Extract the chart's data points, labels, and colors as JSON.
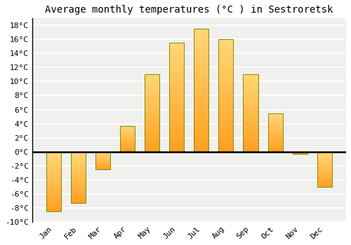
{
  "title": "Average monthly temperatures (°C ) in Sestroretsk",
  "months": [
    "Jan",
    "Feb",
    "Mar",
    "Apr",
    "May",
    "Jun",
    "Jul",
    "Aug",
    "Sep",
    "Oct",
    "Nov",
    "Dec"
  ],
  "values": [
    -8.5,
    -7.3,
    -2.5,
    3.7,
    11.0,
    15.5,
    17.5,
    16.0,
    11.0,
    5.5,
    -0.3,
    -5.0
  ],
  "bar_color": "#FFA500",
  "bar_color_top": "#FFD070",
  "bar_edge_color": "#888800",
  "background_color": "#FFFFFF",
  "plot_bg_color": "#F0F0EE",
  "grid_color": "#FFFFFF",
  "ylim": [
    -10,
    19
  ],
  "yticks": [
    -10,
    -8,
    -6,
    -4,
    -2,
    0,
    2,
    4,
    6,
    8,
    10,
    12,
    14,
    16,
    18
  ],
  "ytick_labels": [
    "-10°C",
    "-8°C",
    "-6°C",
    "-4°C",
    "-2°C",
    "0°C",
    "2°C",
    "4°C",
    "6°C",
    "8°C",
    "10°C",
    "12°C",
    "14°C",
    "16°C",
    "18°C"
  ],
  "title_fontsize": 10,
  "tick_fontsize": 8,
  "bar_width": 0.6
}
